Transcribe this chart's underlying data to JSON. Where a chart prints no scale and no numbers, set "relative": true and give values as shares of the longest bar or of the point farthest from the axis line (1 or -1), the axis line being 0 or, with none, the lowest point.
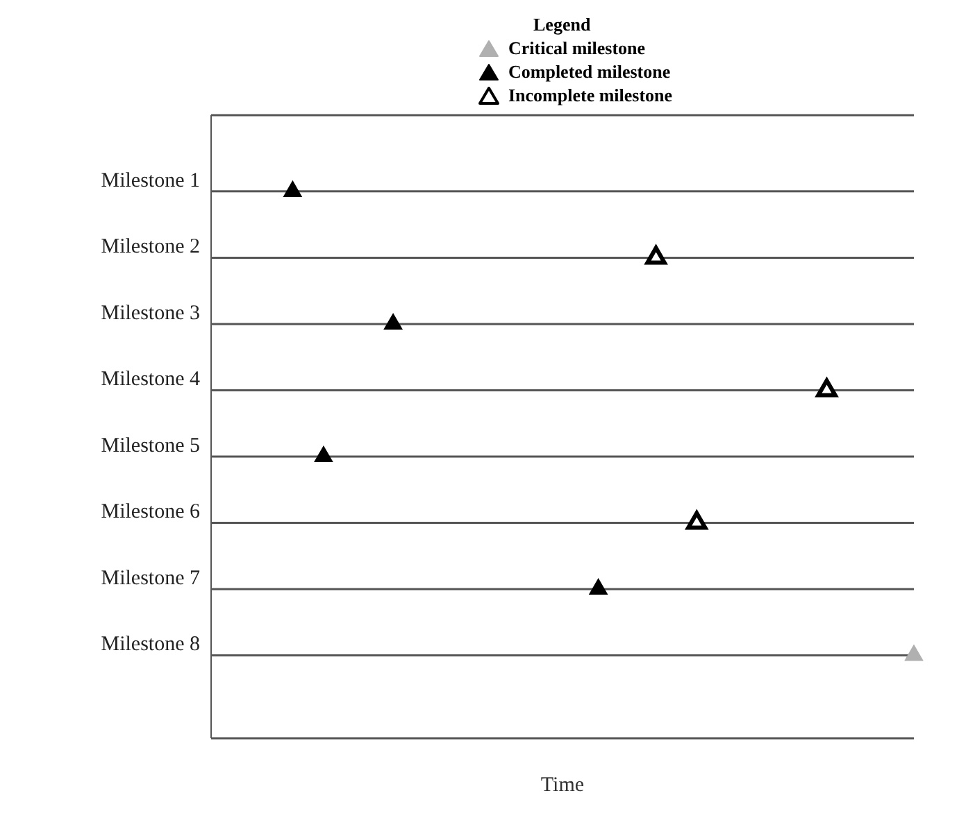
{
  "chart_data": {
    "type": "scatter",
    "orientation": "horizontal",
    "relative": true,
    "xlabel": "Time",
    "legend_title": "Legend",
    "legend": "top right",
    "grid": "y",
    "marker": "triangle",
    "tick_labels": "y",
    "categories": [
      "Milestone 1",
      "Milestone 2",
      "Milestone 3",
      "Milestone 4",
      "Milestone 5",
      "Milestone 6",
      "Milestone 7",
      "Milestone 8"
    ],
    "series": [
      {
        "name": "Critical milestone",
        "color": "#b0b0b0",
        "values": [
          null,
          null,
          null,
          null,
          null,
          null,
          null,
          1
        ]
      },
      {
        "name": "Completed milestone",
        "color": "#000000",
        "values": [
          0.116,
          null,
          0.259,
          null,
          0.16,
          null,
          0.551,
          null
        ]
      },
      {
        "name": "Incomplete milestone",
        "color": "#ffffff",
        "values": [
          null,
          0.633,
          null,
          0.876,
          null,
          0.691,
          null,
          null
        ]
      }
    ]
  }
}
